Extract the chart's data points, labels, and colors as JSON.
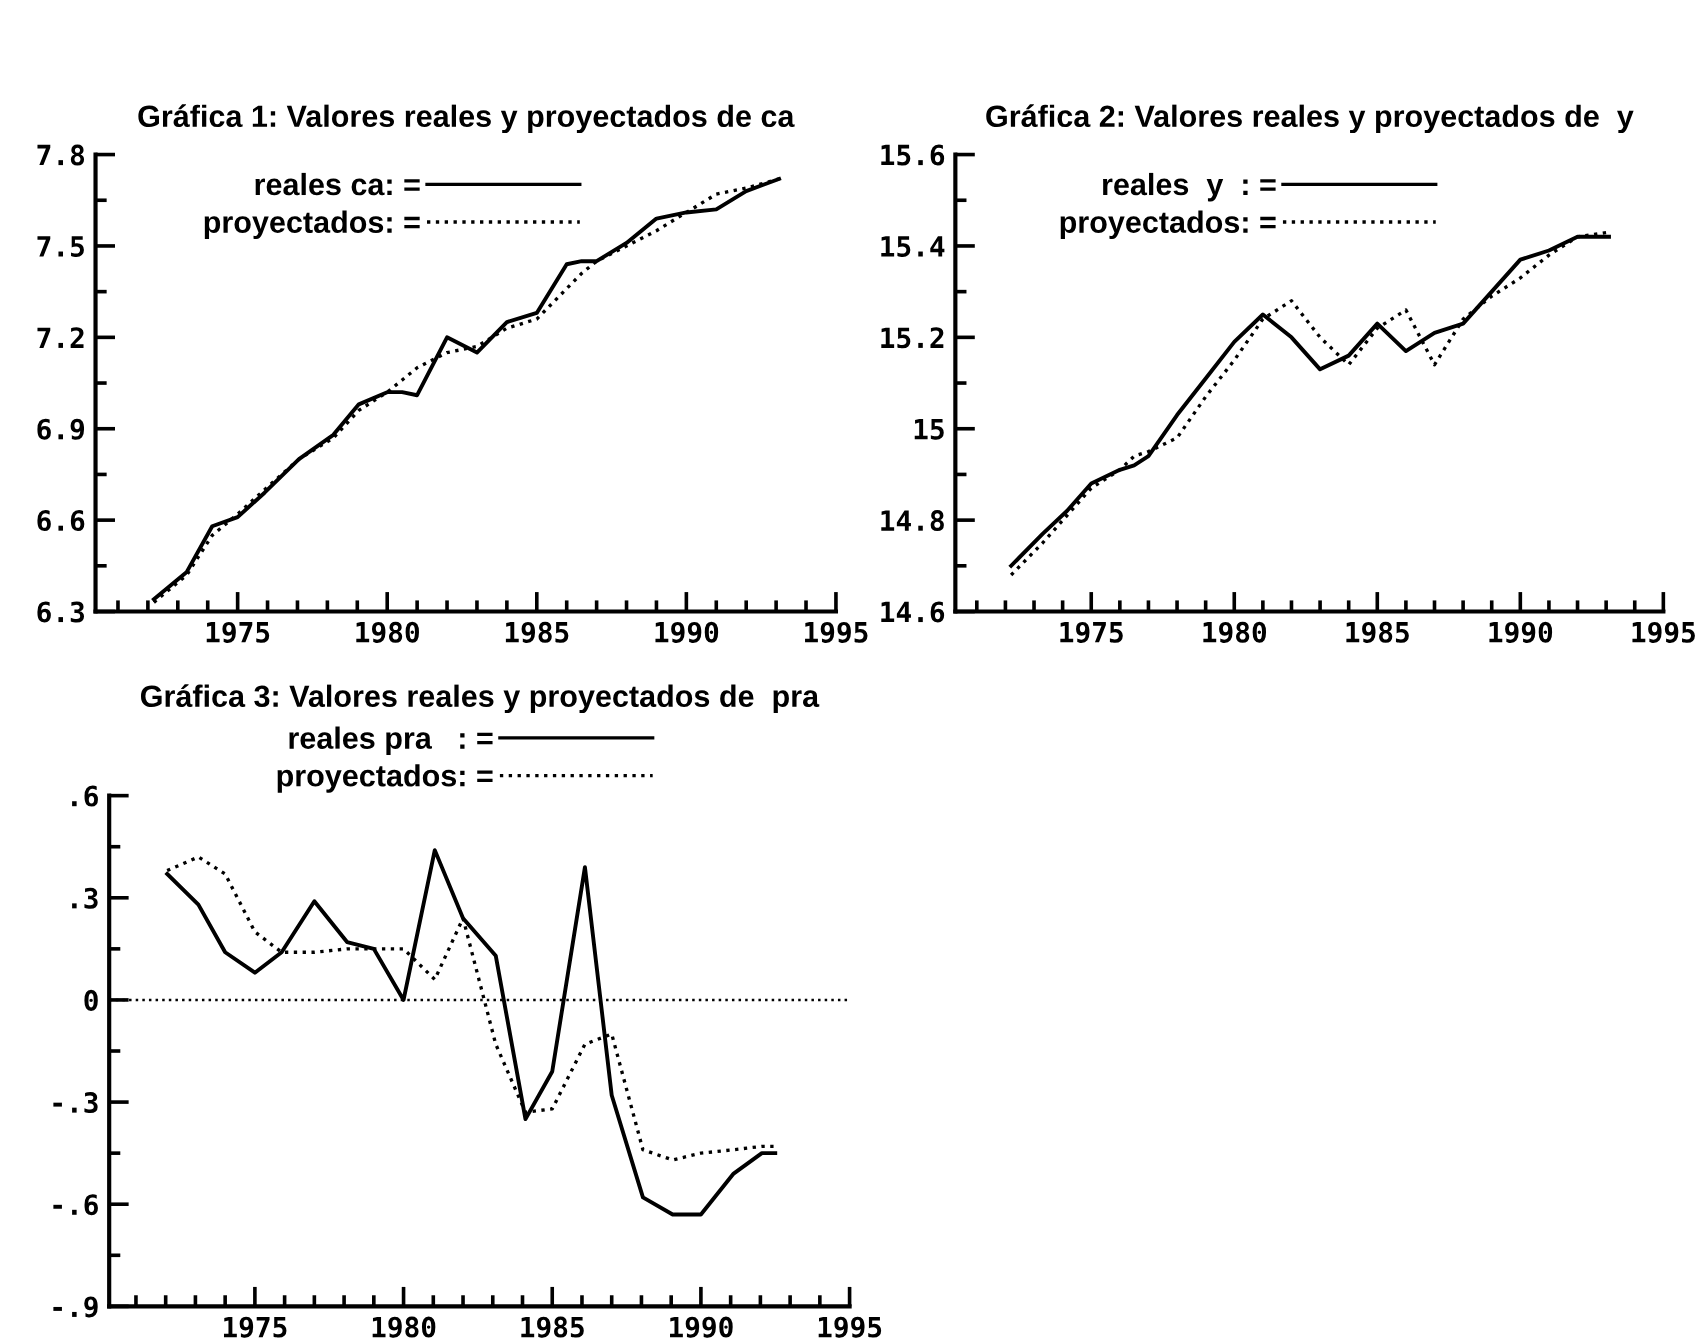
{
  "chart_data": [
    {
      "type": "line",
      "title": "Gráfica 1: Valores reales y proyectados de ca",
      "legend": "top left",
      "grid": false,
      "x": [
        1972.2,
        1973.3,
        1974.15,
        1975,
        1975.9,
        1977.05,
        1978.2,
        1979.05,
        1980,
        1980.5,
        1981,
        1982,
        1983,
        1984,
        1985,
        1986,
        1986.5,
        1987,
        1988,
        1989,
        1990,
        1991,
        1992,
        1993.1
      ],
      "series": [
        {
          "name": "reales ca: =",
          "color": "#000000",
          "line_style": "solid",
          "values": [
            6.34,
            6.43,
            6.58,
            6.61,
            6.69,
            6.8,
            6.88,
            6.98,
            7.02,
            7.02,
            7.01,
            7.2,
            7.15,
            7.25,
            7.28,
            7.44,
            7.45,
            7.45,
            7.51,
            7.59,
            7.61,
            7.62,
            7.68,
            7.72
          ]
        },
        {
          "name": "proyectados: =",
          "color": "#000000",
          "line_style": "dotted",
          "values": [
            6.33,
            6.42,
            6.55,
            6.62,
            6.7,
            6.8,
            6.87,
            6.96,
            7.02,
            7.06,
            7.1,
            7.15,
            7.17,
            7.23,
            7.26,
            7.36,
            7.41,
            7.45,
            7.5,
            7.55,
            7.61,
            7.67,
            7.69,
            7.72
          ]
        }
      ],
      "xlim": [
        1970.25,
        1995
      ],
      "xticks": [
        {
          "value": 1971,
          "label": null
        },
        {
          "value": 1972,
          "label": null
        },
        {
          "value": 1973,
          "label": null
        },
        {
          "value": 1974,
          "label": null
        },
        1975,
        {
          "value": 1976,
          "label": null
        },
        {
          "value": 1977,
          "label": null
        },
        {
          "value": 1978,
          "label": null
        },
        {
          "value": 1979,
          "label": null
        },
        1980,
        {
          "value": 1981,
          "label": null
        },
        {
          "value": 1982,
          "label": null
        },
        {
          "value": 1983,
          "label": null
        },
        {
          "value": 1984,
          "label": null
        },
        1985,
        {
          "value": 1986,
          "label": null
        },
        {
          "value": 1987,
          "label": null
        },
        {
          "value": 1988,
          "label": null
        },
        {
          "value": 1989,
          "label": null
        },
        1990,
        {
          "value": 1991,
          "label": null
        },
        {
          "value": 1992,
          "label": null
        },
        {
          "value": 1993,
          "label": null
        },
        {
          "value": 1994,
          "label": null
        },
        1995
      ],
      "ylim": [
        6.3,
        7.8
      ],
      "yticks": [
        {
          "value": 6.3,
          "label": "6.3"
        },
        {
          "value": 6.45,
          "label": null
        },
        {
          "value": 6.6,
          "label": "6.6"
        },
        {
          "value": 6.75,
          "label": null
        },
        {
          "value": 6.9,
          "label": "6.9"
        },
        {
          "value": 7.05,
          "label": null
        },
        {
          "value": 7.2,
          "label": "7.2"
        },
        {
          "value": 7.35,
          "label": null
        },
        {
          "value": 7.5,
          "label": "7.5"
        },
        {
          "value": 7.65,
          "label": null
        },
        {
          "value": 7.8,
          "label": "7.8"
        }
      ]
    },
    {
      "type": "line",
      "title": "Gráfica 2: Valores reales y proyectados de  y",
      "legend": "top left",
      "grid": false,
      "x": [
        1972.2,
        1973.3,
        1974.15,
        1975,
        1976,
        1976.5,
        1977,
        1978,
        1979,
        1980,
        1981,
        1982,
        1983,
        1984,
        1985,
        1986,
        1987,
        1988,
        1989,
        1990,
        1991,
        1992,
        1993.1
      ],
      "series": [
        {
          "name": "reales  y  : =",
          "color": "#000000",
          "line_style": "solid",
          "values": [
            14.7,
            14.77,
            14.82,
            14.88,
            14.91,
            14.92,
            14.94,
            15.03,
            15.11,
            15.19,
            15.25,
            15.2,
            15.13,
            15.16,
            15.23,
            15.17,
            15.21,
            15.23,
            15.3,
            15.37,
            15.39,
            15.42,
            15.42
          ]
        },
        {
          "name": "proyectados: =",
          "color": "#000000",
          "line_style": "dotted",
          "values": [
            14.68,
            14.75,
            14.81,
            14.87,
            14.91,
            14.94,
            14.95,
            14.98,
            15.07,
            15.15,
            15.24,
            15.28,
            15.2,
            15.14,
            15.22,
            15.26,
            15.14,
            15.24,
            15.29,
            15.33,
            15.38,
            15.42,
            15.43
          ]
        }
      ],
      "xlim": [
        1970.25,
        1995
      ],
      "xticks": [
        {
          "value": 1971,
          "label": null
        },
        {
          "value": 1972,
          "label": null
        },
        {
          "value": 1973,
          "label": null
        },
        {
          "value": 1974,
          "label": null
        },
        1975,
        {
          "value": 1976,
          "label": null
        },
        {
          "value": 1977,
          "label": null
        },
        {
          "value": 1978,
          "label": null
        },
        {
          "value": 1979,
          "label": null
        },
        1980,
        {
          "value": 1981,
          "label": null
        },
        {
          "value": 1982,
          "label": null
        },
        {
          "value": 1983,
          "label": null
        },
        {
          "value": 1984,
          "label": null
        },
        1985,
        {
          "value": 1986,
          "label": null
        },
        {
          "value": 1987,
          "label": null
        },
        {
          "value": 1988,
          "label": null
        },
        {
          "value": 1989,
          "label": null
        },
        1990,
        {
          "value": 1991,
          "label": null
        },
        {
          "value": 1992,
          "label": null
        },
        {
          "value": 1993,
          "label": null
        },
        {
          "value": 1994,
          "label": null
        },
        1995
      ],
      "ylim": [
        14.6,
        15.6
      ],
      "yticks": [
        {
          "value": 14.6,
          "label": "14.6"
        },
        {
          "value": 14.7,
          "label": null
        },
        {
          "value": 14.8,
          "label": "14.8"
        },
        {
          "value": 14.9,
          "label": null
        },
        15,
        {
          "value": 15.1,
          "label": null
        },
        {
          "value": 15.2,
          "label": "15.2"
        },
        {
          "value": 15.3,
          "label": null
        },
        {
          "value": 15.4,
          "label": "15.4"
        },
        {
          "value": 15.5,
          "label": null
        },
        {
          "value": 15.6,
          "label": "15.6"
        }
      ]
    },
    {
      "type": "line",
      "title": "Gráfica 3: Valores reales y proyectados de  pra",
      "legend": "top",
      "grid": false,
      "x": [
        1972.05,
        1973.1,
        1974,
        1975,
        1975.9,
        1977,
        1978.1,
        1979,
        1980,
        1981.05,
        1982,
        1983.1,
        1984.1,
        1985,
        1986.1,
        1987,
        1988.05,
        1989.05,
        1990,
        1991.1,
        1992.05,
        1992.5
      ],
      "series": [
        {
          "name": "reales pra   : =",
          "color": "#000000",
          "line_style": "solid",
          "values": [
            0.37,
            0.28,
            0.14,
            0.08,
            0.14,
            0.29,
            0.17,
            0.15,
            0.0,
            0.44,
            0.24,
            0.13,
            -0.35,
            -0.21,
            0.39,
            -0.28,
            -0.58,
            -0.63,
            -0.63,
            -0.51,
            -0.45,
            -0.45
          ]
        },
        {
          "name": "proyectados: =",
          "color": "#000000",
          "line_style": "dotted",
          "values": [
            0.38,
            0.42,
            0.37,
            0.2,
            0.14,
            0.14,
            0.15,
            0.15,
            0.15,
            0.06,
            0.24,
            -0.13,
            -0.33,
            -0.32,
            -0.13,
            -0.1,
            -0.44,
            -0.47,
            -0.45,
            -0.44,
            -0.43,
            -0.43
          ]
        }
      ],
      "ref_lines": [
        {
          "axis": "y",
          "value": 0,
          "color": "#000000",
          "line_style": "dotted"
        }
      ],
      "xlim": [
        1970.1,
        1995
      ],
      "xticks": [
        {
          "value": 1971,
          "label": null
        },
        {
          "value": 1972,
          "label": null
        },
        {
          "value": 1973,
          "label": null
        },
        {
          "value": 1974,
          "label": null
        },
        1975,
        {
          "value": 1976,
          "label": null
        },
        {
          "value": 1977,
          "label": null
        },
        {
          "value": 1978,
          "label": null
        },
        {
          "value": 1979,
          "label": null
        },
        1980,
        {
          "value": 1981,
          "label": null
        },
        {
          "value": 1982,
          "label": null
        },
        {
          "value": 1983,
          "label": null
        },
        {
          "value": 1984,
          "label": null
        },
        1985,
        {
          "value": 1986,
          "label": null
        },
        {
          "value": 1987,
          "label": null
        },
        {
          "value": 1988,
          "label": null
        },
        {
          "value": 1989,
          "label": null
        },
        1990,
        {
          "value": 1991,
          "label": null
        },
        {
          "value": 1992,
          "label": null
        },
        {
          "value": 1993,
          "label": null
        },
        {
          "value": 1994,
          "label": null
        },
        1995
      ],
      "ylim": [
        -0.9,
        0.6
      ],
      "yticks": [
        {
          "value": -0.9,
          "label": "-.9"
        },
        {
          "value": -0.75,
          "label": null
        },
        {
          "value": -0.6,
          "label": "-.6"
        },
        {
          "value": -0.45,
          "label": null
        },
        {
          "value": -0.3,
          "label": "-.3"
        },
        {
          "value": -0.15,
          "label": null
        },
        {
          "value": 0,
          "label": "0"
        },
        {
          "value": 0.15,
          "label": null
        },
        {
          "value": 0.3,
          "label": ".3"
        },
        {
          "value": 0.45,
          "label": null
        },
        {
          "value": 0.6,
          "label": ".6"
        }
      ]
    }
  ]
}
